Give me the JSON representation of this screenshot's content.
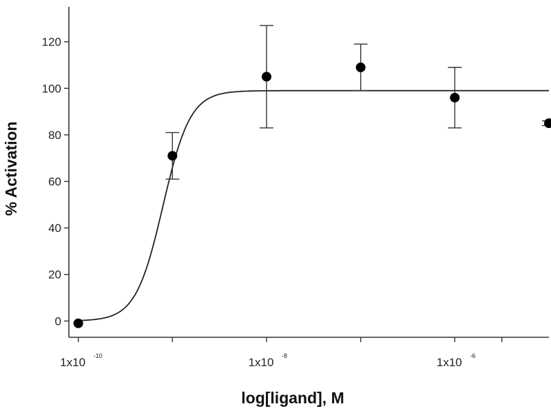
{
  "chart_data": {
    "type": "scatter",
    "title": "",
    "xlabel": "log[ligand], M",
    "ylabel": "% Activation",
    "x_scale": "log10",
    "xlim": [
      -10.1,
      -5.0
    ],
    "ylim": [
      -7,
      135
    ],
    "grid": false,
    "y_ticks": [
      0,
      20,
      40,
      60,
      80,
      100,
      120
    ],
    "x_ticks": [
      -10,
      -9,
      -8,
      -7,
      -6,
      -5.5
    ],
    "x_tick_labels": [
      {
        "x": -10,
        "base": "1x10",
        "exp": "-10"
      },
      {
        "x": -8,
        "base": "1x10",
        "exp": "-8"
      },
      {
        "x": -6,
        "base": "1x10",
        "exp": "-6"
      }
    ],
    "points": [
      {
        "x": -10.0,
        "y": -1,
        "err": 0
      },
      {
        "x": -9.0,
        "y": 71,
        "err": 10
      },
      {
        "x": -8.0,
        "y": 105,
        "err": 22
      },
      {
        "x": -7.0,
        "y": 109,
        "err": 10
      },
      {
        "x": -6.0,
        "y": 96,
        "err": 13
      },
      {
        "x": -5.0,
        "y": 85,
        "err": 1
      }
    ],
    "fit_curve": {
      "bottom": 0,
      "top": 99,
      "log_ec50": -9.1,
      "hill_slope": 3.0,
      "x_range": [
        -10.0,
        -5.0
      ]
    }
  }
}
